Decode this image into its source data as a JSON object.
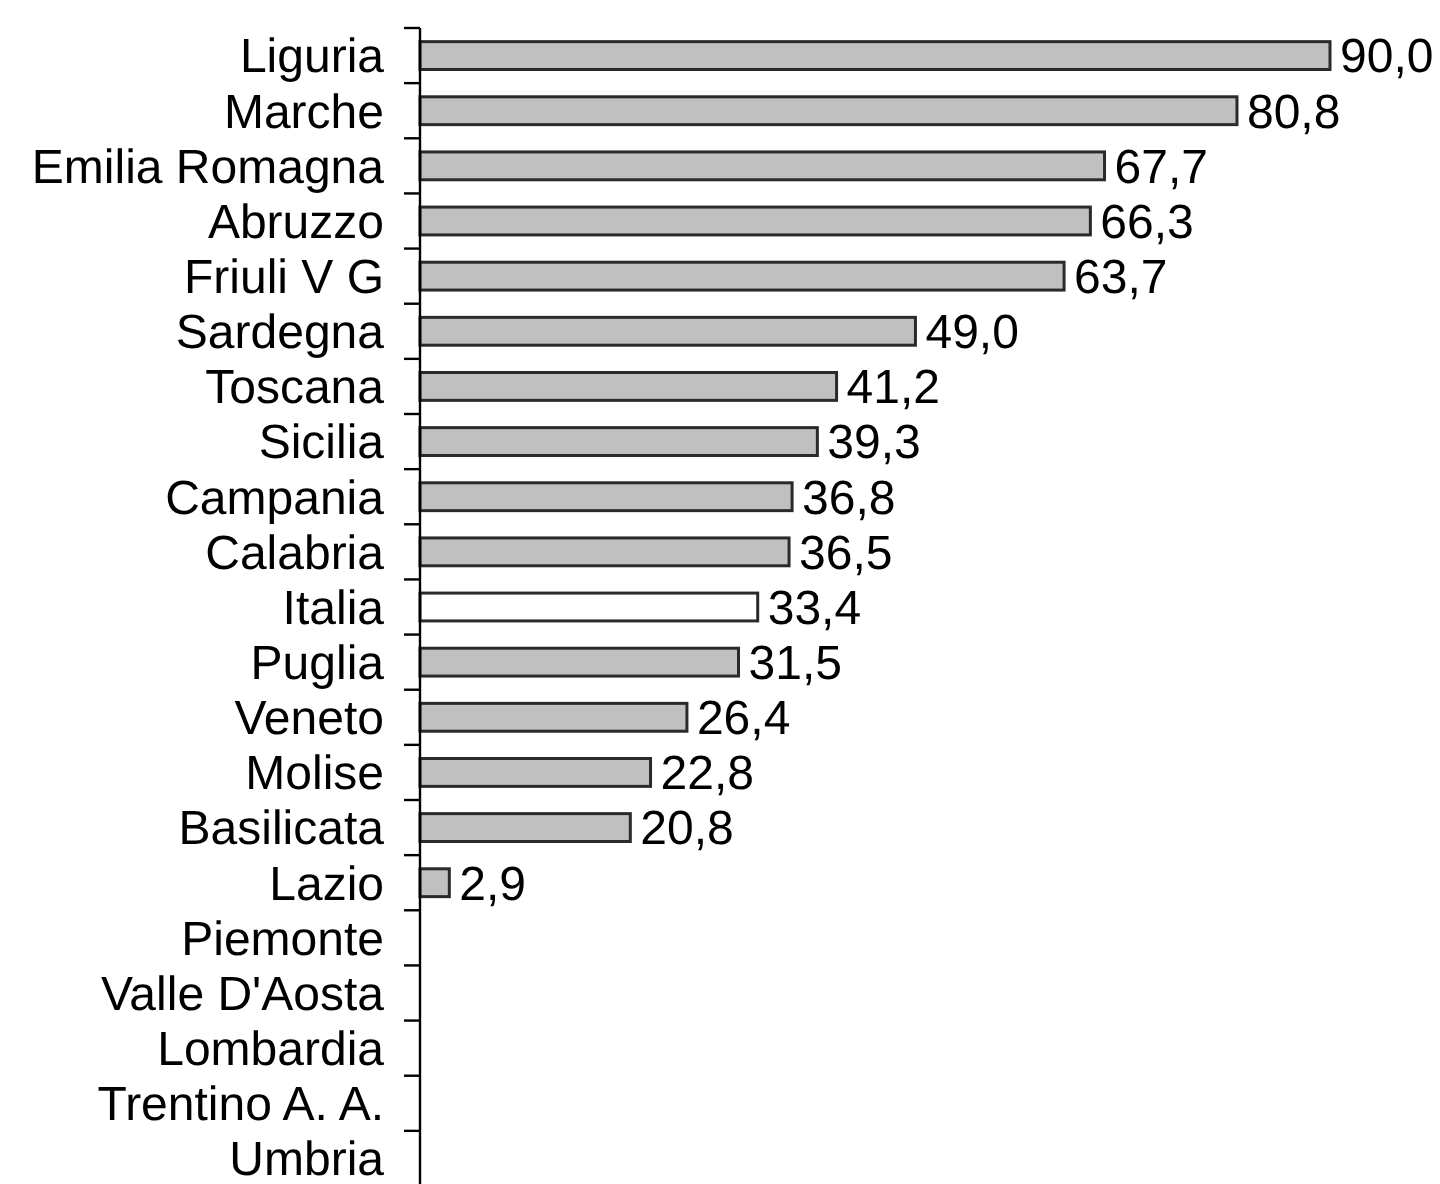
{
  "chart_data": {
    "type": "bar",
    "orientation": "horizontal",
    "categories": [
      "Liguria",
      "Marche",
      "Emilia Romagna",
      "Abruzzo",
      "Friuli V G",
      "Sardegna",
      "Toscana",
      "Sicilia",
      "Campania",
      "Calabria",
      "Italia",
      "Puglia",
      "Veneto",
      "Molise",
      "Basilicata",
      "Lazio",
      "Piemonte",
      "Valle D'Aosta",
      "Lombardia",
      "Trentino A. A.",
      "Umbria"
    ],
    "values": [
      90.0,
      80.8,
      67.7,
      66.3,
      63.7,
      49.0,
      41.2,
      39.3,
      36.8,
      36.5,
      33.4,
      31.5,
      26.4,
      22.8,
      20.8,
      2.9,
      null,
      null,
      null,
      null,
      null
    ],
    "colors": [
      "#c0c0c0",
      "#c0c0c0",
      "#c0c0c0",
      "#c0c0c0",
      "#c0c0c0",
      "#c0c0c0",
      "#c0c0c0",
      "#c0c0c0",
      "#c0c0c0",
      "#c0c0c0",
      "#ffffff",
      "#c0c0c0",
      "#c0c0c0",
      "#c0c0c0",
      "#c0c0c0",
      "#c0c0c0",
      null,
      null,
      null,
      null,
      null
    ],
    "value_labels": [
      "90,0",
      "80,8",
      "67,7",
      "66,3",
      "63,7",
      "49,0",
      "41,2",
      "39,3",
      "36,8",
      "36,5",
      "33,4",
      "31,5",
      "26,4",
      "22,8",
      "20,8",
      "2,9",
      null,
      null,
      null,
      null,
      null
    ]
  }
}
